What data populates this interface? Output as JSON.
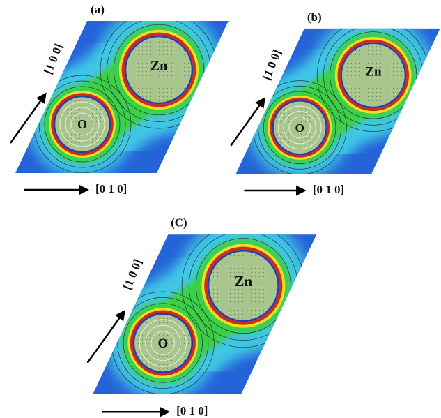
{
  "panels": [
    {
      "label": "(a)",
      "atoms": [
        "Zn",
        "O"
      ],
      "axis_vertical": "[1 0 0]",
      "axis_horizontal": "[0 1 0]"
    },
    {
      "label": "(b)",
      "atoms": [
        "Zn",
        "O"
      ],
      "axis_vertical": "[1 0 0]",
      "axis_horizontal": "[0 1 0]"
    },
    {
      "label": "(C)",
      "atoms": [
        "Zn",
        "O"
      ],
      "axis_vertical": "[1 0 0]",
      "axis_horizontal": "[0 1 0]"
    }
  ]
}
